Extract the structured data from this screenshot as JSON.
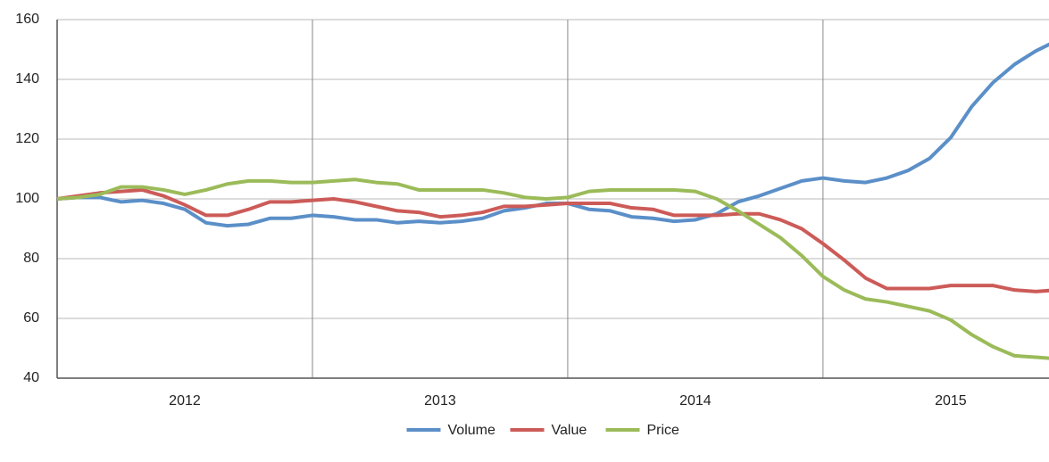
{
  "chart_data": {
    "type": "line",
    "categories": [
      null,
      null,
      null,
      null,
      null,
      null,
      "2012",
      null,
      null,
      null,
      null,
      null,
      null,
      null,
      null,
      null,
      null,
      null,
      "2013",
      null,
      null,
      null,
      null,
      null,
      null,
      null,
      null,
      null,
      null,
      null,
      "2014",
      null,
      null,
      null,
      null,
      null,
      null,
      null,
      null,
      null,
      null,
      null,
      "2015",
      null,
      null,
      null,
      null,
      null
    ],
    "series": [
      {
        "name": "Volume",
        "color": "#5b8fc8",
        "values": [
          100,
          100.5,
          100.5,
          99,
          99.5,
          98.5,
          96.5,
          92,
          91,
          91.5,
          93.5,
          93.5,
          94.5,
          94,
          93,
          93,
          92,
          92.5,
          92,
          92.5,
          93.5,
          96,
          97,
          98.5,
          98.5,
          96.5,
          96,
          94,
          93.5,
          92.5,
          93,
          95,
          99,
          101,
          103.5,
          106,
          107,
          106,
          105.5,
          107,
          109.5,
          113.5,
          120.5,
          131,
          139,
          145,
          149.5,
          153
        ]
      },
      {
        "name": "Value",
        "color": "#cc5b58",
        "values": [
          100,
          101,
          102,
          102.5,
          103,
          101,
          98,
          94.5,
          94.5,
          96.5,
          99,
          99,
          99.5,
          100,
          99,
          97.5,
          96,
          95.5,
          94,
          94.5,
          95.5,
          97.5,
          97.5,
          98,
          98.5,
          98.5,
          98.5,
          97,
          96.5,
          94.5,
          94.5,
          94.5,
          95,
          95,
          93,
          90,
          85,
          79.5,
          73.5,
          70,
          70,
          70,
          71,
          71,
          71,
          69.5,
          69,
          69.5
        ]
      },
      {
        "name": "Price",
        "color": "#9bbb59",
        "values": [
          100,
          100.5,
          101.5,
          104,
          104,
          103,
          101.5,
          103,
          105,
          106,
          106,
          105.5,
          105.5,
          106,
          106.5,
          105.5,
          105,
          103,
          103,
          103,
          103,
          102,
          100.5,
          100,
          100.5,
          102.5,
          103,
          103,
          103,
          103,
          102.5,
          100,
          96,
          91.5,
          87,
          81,
          74,
          69.5,
          66.5,
          65.5,
          64,
          62.5,
          59.5,
          54.5,
          50.5,
          47.5,
          47,
          46.5
        ]
      }
    ],
    "ylim": [
      40,
      160
    ],
    "yticks": [
      40,
      60,
      80,
      100,
      120,
      140,
      160
    ],
    "grid": true,
    "legend": "bottom"
  }
}
